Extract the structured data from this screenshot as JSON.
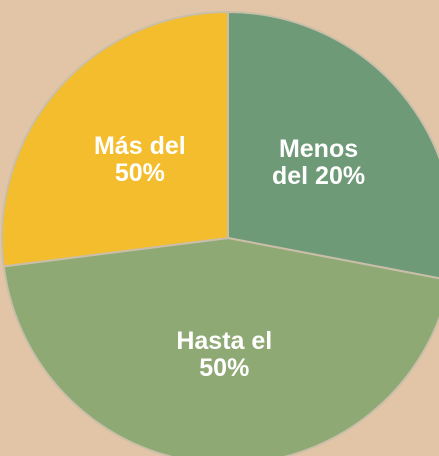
{
  "chart_data": {
    "type": "pie",
    "categories": [
      "Menos del 20%",
      "Hasta el 50%",
      "Más del 50%"
    ],
    "values": [
      28,
      45,
      27
    ],
    "colors": [
      "#6f9a78",
      "#8fa975",
      "#f3bd2d"
    ]
  }
}
